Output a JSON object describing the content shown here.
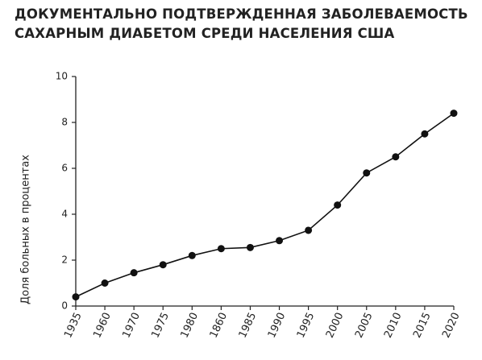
{
  "chart_data": {
    "type": "line",
    "title": "ДОКУМЕНТАЛЬНО ПОДТВЕРЖДЕННАЯ ЗАБОЛЕВАЕМОСТЬ\nСАХАРНЫМ ДИАБЕТОМ СРЕДИ НАСЕЛЕНИЯ США",
    "y_label": "Доля больных в процентах",
    "categories": [
      "1935",
      "1960",
      "1970",
      "1975",
      "1980",
      "1860",
      "1985",
      "1990",
      "1995",
      "2000",
      "2005",
      "2010",
      "2015",
      "2020"
    ],
    "values": [
      0.4,
      1.0,
      1.45,
      1.8,
      2.2,
      2.5,
      2.55,
      2.85,
      3.3,
      4.4,
      5.8,
      6.5,
      7.5,
      8.4
    ],
    "color": "#111111",
    "ylim": [
      0,
      10
    ],
    "yticks": [
      0,
      2,
      4,
      6,
      8,
      10
    ],
    "grid": false
  }
}
